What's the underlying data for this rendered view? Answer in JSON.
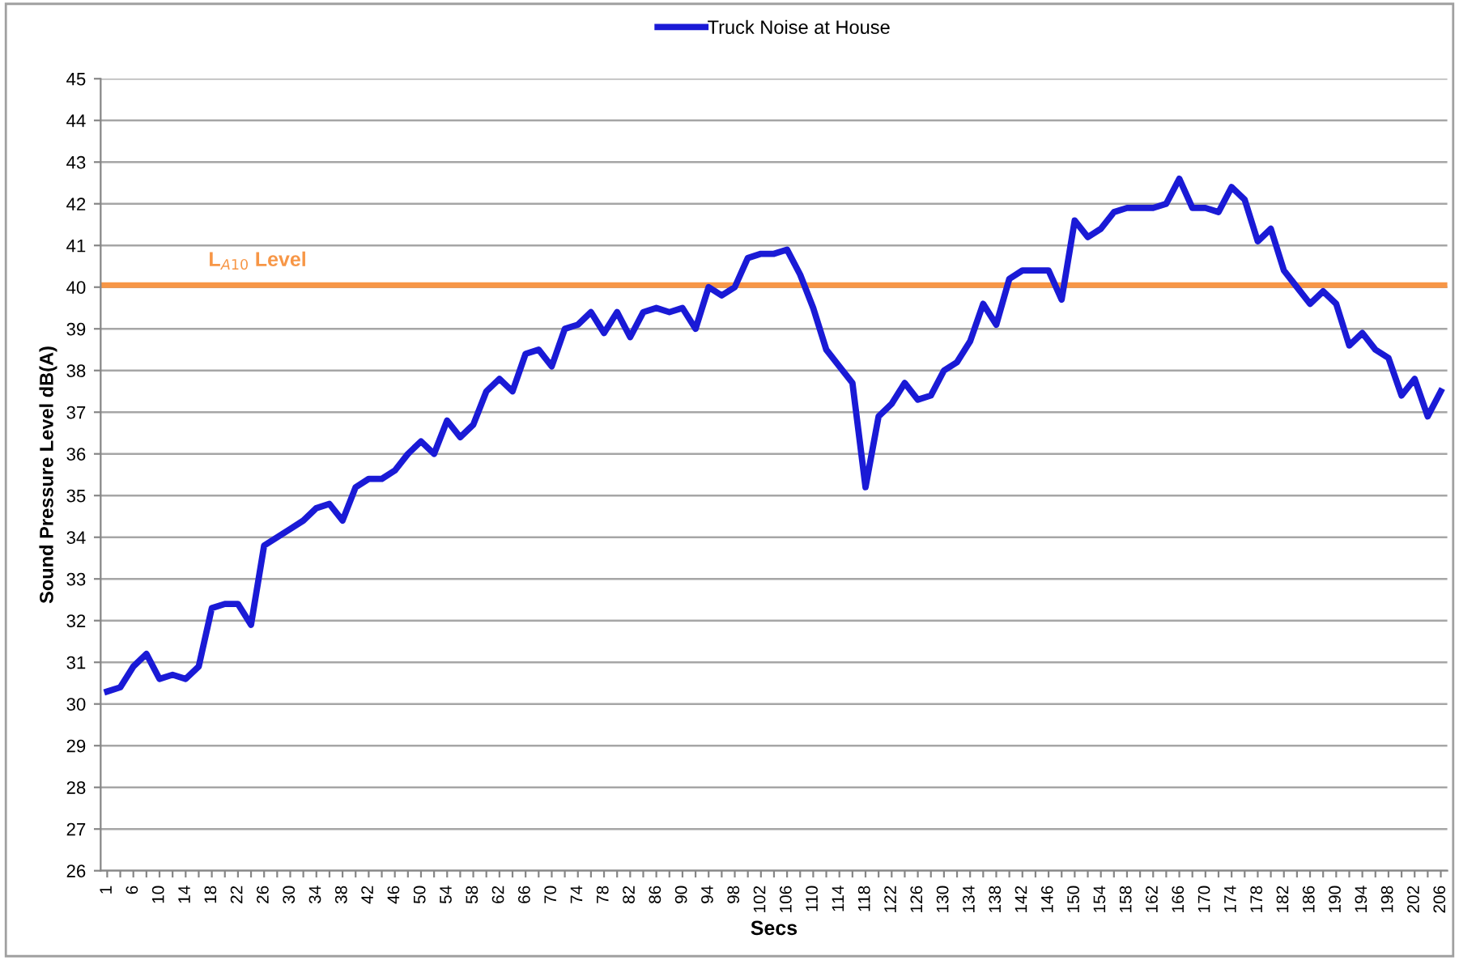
{
  "chart_data": {
    "type": "line",
    "xlabel": "Secs",
    "ylabel": "Sound Pressure Level dB(A)",
    "categories": [
      "1",
      null,
      "6",
      null,
      "10",
      null,
      "14",
      null,
      "18",
      null,
      "22",
      null,
      "26",
      null,
      "30",
      null,
      "34",
      null,
      "38",
      null,
      "42",
      null,
      "46",
      null,
      "50",
      null,
      "54",
      null,
      "58",
      null,
      "62",
      null,
      "66",
      null,
      "70",
      null,
      "74",
      null,
      "78",
      null,
      "82",
      null,
      "86",
      null,
      "90",
      null,
      "94",
      null,
      "98",
      null,
      "102",
      null,
      "106",
      null,
      "110",
      null,
      "114",
      null,
      "118",
      null,
      "122",
      null,
      "126",
      null,
      "130",
      null,
      "134",
      null,
      "138",
      null,
      "142",
      null,
      "146",
      null,
      "150",
      null,
      "154",
      null,
      "158",
      null,
      "162",
      null,
      "166",
      null,
      "170",
      null,
      "174",
      null,
      "178",
      null,
      "182",
      null,
      "186",
      null,
      "190",
      null,
      "194",
      null,
      "198",
      null,
      "202",
      null,
      "206"
    ],
    "series": [
      {
        "name": "Truck Noise at House",
        "color": "#1a1ad6",
        "values": [
          30.3,
          30.4,
          30.9,
          31.2,
          30.6,
          30.7,
          30.6,
          30.9,
          32.3,
          32.4,
          32.4,
          31.9,
          33.8,
          34.0,
          34.2,
          34.4,
          34.7,
          34.8,
          34.4,
          35.2,
          35.4,
          35.4,
          35.6,
          36.0,
          36.3,
          36.0,
          36.8,
          36.4,
          36.7,
          37.5,
          37.8,
          37.5,
          38.4,
          38.5,
          38.1,
          39.0,
          39.1,
          39.4,
          38.9,
          39.4,
          38.8,
          39.4,
          39.5,
          39.4,
          39.5,
          39.0,
          40.0,
          39.8,
          40.0,
          40.7,
          40.8,
          40.8,
          40.9,
          40.3,
          39.5,
          38.5,
          38.1,
          37.7,
          35.2,
          36.9,
          37.2,
          37.7,
          37.3,
          37.4,
          38.0,
          38.2,
          38.7,
          39.6,
          39.1,
          40.2,
          40.4,
          40.4,
          40.4,
          39.7,
          41.6,
          41.2,
          41.4,
          41.8,
          41.9,
          41.9,
          41.9,
          42.0,
          42.6,
          41.9,
          41.9,
          41.8,
          42.4,
          42.1,
          41.1,
          41.4,
          40.4,
          40.0,
          39.6,
          39.9,
          39.6,
          38.6,
          38.9,
          38.5,
          38.3,
          37.4,
          37.8,
          36.9,
          37.5
        ]
      }
    ],
    "ref_lines": [
      {
        "axis": "y",
        "value": 40.05,
        "label": "L$_{A10}$ Level",
        "color": "#f79646"
      }
    ],
    "ylim": [
      26,
      45
    ],
    "yticks": [
      26,
      27,
      28,
      29,
      30,
      31,
      32,
      33,
      34,
      35,
      36,
      37,
      38,
      39,
      40,
      41,
      42,
      43,
      44,
      45
    ],
    "grid": "y",
    "legend": "top",
    "marker": "none",
    "line_style": "solid"
  }
}
